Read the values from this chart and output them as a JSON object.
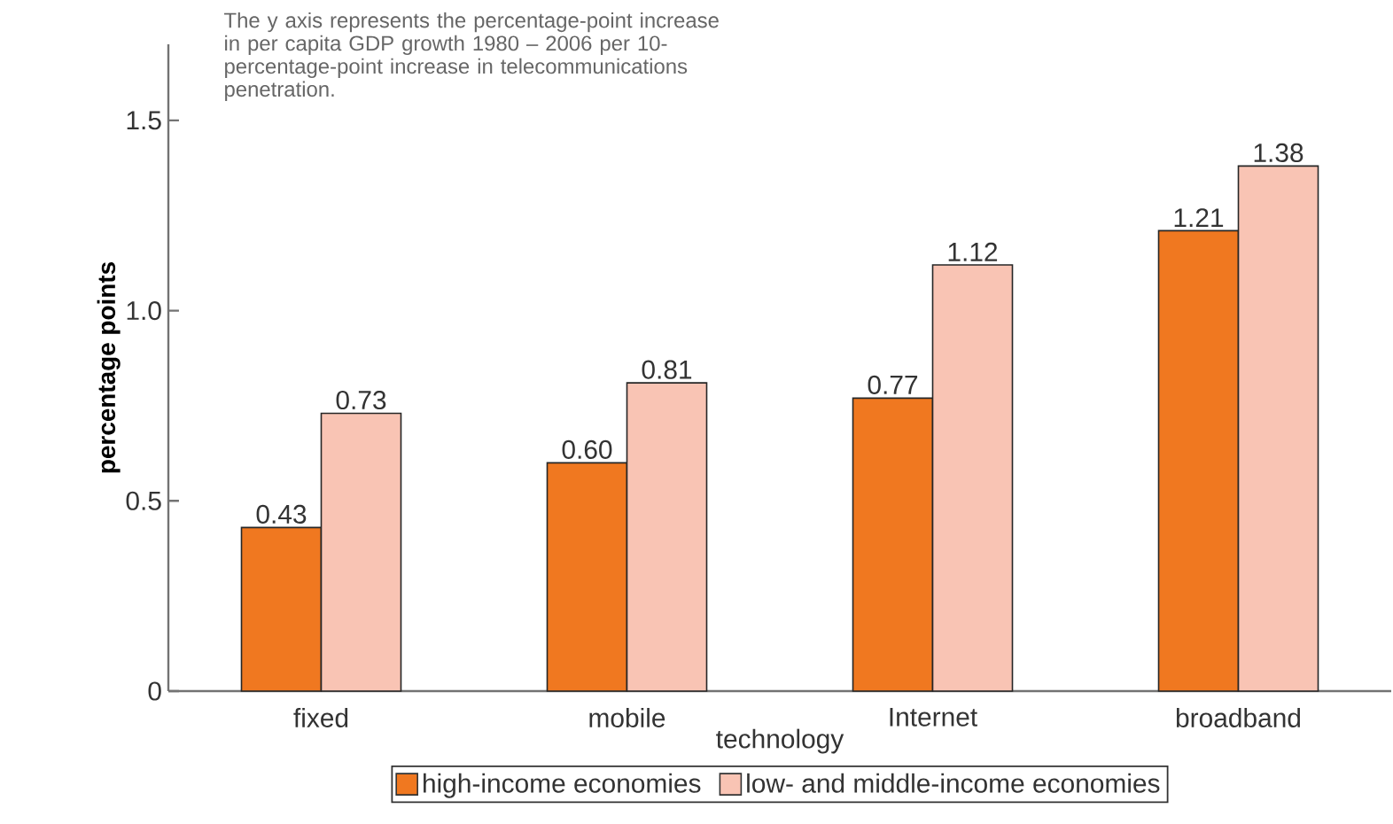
{
  "chart_data": {
    "type": "bar",
    "xlabel": "technology",
    "ylabel": "percentage points",
    "annotations": [
      "The y axis represents the percentage-point increase in per capita GDP growth 1980 – 2006 per 10-percentage-point increase in telecommunications penetration."
    ],
    "categories": [
      "fixed",
      "mobile",
      "Internet",
      "broadband"
    ],
    "series": [
      {
        "name": "high-income economies",
        "color": "#f07820",
        "values": [
          0.43,
          0.6,
          0.77,
          1.21
        ],
        "value_labels": [
          "0.43",
          "0.60",
          "0.77",
          "1.21"
        ]
      },
      {
        "name": "low- and middle-income economies",
        "color": "#f9c4b4",
        "values": [
          0.73,
          0.81,
          1.12,
          1.38
        ],
        "value_labels": [
          "0.73",
          "0.81",
          "1.12",
          "1.38"
        ]
      }
    ],
    "ylim": [
      0,
      1.7
    ],
    "yticks": [
      0,
      0.5,
      {
        "value": 1,
        "label": "1.0"
      },
      1.5
    ],
    "legend": "bottom",
    "grid": false
  }
}
